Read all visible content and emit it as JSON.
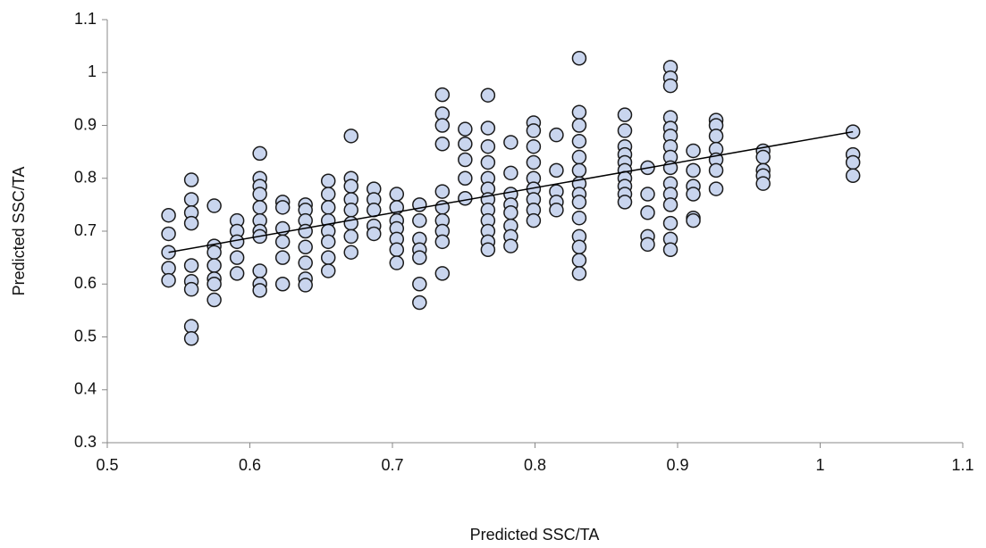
{
  "chart_data": {
    "type": "scatter",
    "x_label": "Predicted SSC/TA",
    "y_label": "Predicted SSC/TA",
    "xlim": [
      0.5,
      1.1
    ],
    "xticks": [
      0.5,
      0.6,
      0.7,
      0.8,
      0.9,
      1,
      1.1
    ],
    "ylim": [
      0.3,
      1.1
    ],
    "yticks": [
      0.3,
      0.4,
      0.5,
      0.6,
      0.7,
      0.8,
      0.9,
      1,
      1.1
    ],
    "grid": false,
    "color": "#c9d5ee",
    "x": [
      0.543,
      0.543,
      0.543,
      0.543,
      0.543,
      0.559,
      0.559,
      0.559,
      0.559,
      0.559,
      0.559,
      0.559,
      0.559,
      0.559,
      0.575,
      0.575,
      0.575,
      0.575,
      0.575,
      0.575,
      0.575,
      0.591,
      0.591,
      0.591,
      0.591,
      0.591,
      0.607,
      0.607,
      0.607,
      0.607,
      0.607,
      0.607,
      0.607,
      0.607,
      0.607,
      0.607,
      0.607,
      0.623,
      0.623,
      0.623,
      0.623,
      0.623,
      0.623,
      0.639,
      0.639,
      0.639,
      0.639,
      0.639,
      0.639,
      0.639,
      0.639,
      0.655,
      0.655,
      0.655,
      0.655,
      0.655,
      0.655,
      0.655,
      0.655,
      0.671,
      0.671,
      0.671,
      0.671,
      0.671,
      0.671,
      0.671,
      0.671,
      0.687,
      0.687,
      0.687,
      0.687,
      0.687,
      0.703,
      0.703,
      0.703,
      0.703,
      0.703,
      0.703,
      0.703,
      0.719,
      0.719,
      0.719,
      0.719,
      0.719,
      0.719,
      0.719,
      0.735,
      0.735,
      0.735,
      0.735,
      0.735,
      0.735,
      0.735,
      0.735,
      0.735,
      0.735,
      0.751,
      0.751,
      0.751,
      0.751,
      0.751,
      0.767,
      0.767,
      0.767,
      0.767,
      0.767,
      0.767,
      0.767,
      0.767,
      0.767,
      0.767,
      0.767,
      0.767,
      0.783,
      0.783,
      0.783,
      0.783,
      0.783,
      0.783,
      0.783,
      0.783,
      0.799,
      0.799,
      0.799,
      0.799,
      0.799,
      0.799,
      0.799,
      0.799,
      0.799,
      0.815,
      0.815,
      0.815,
      0.815,
      0.815,
      0.831,
      0.831,
      0.831,
      0.831,
      0.831,
      0.831,
      0.831,
      0.831,
      0.831,
      0.831,
      0.831,
      0.831,
      0.831,
      0.831,
      0.863,
      0.863,
      0.863,
      0.863,
      0.863,
      0.863,
      0.863,
      0.863,
      0.863,
      0.863,
      0.879,
      0.879,
      0.879,
      0.879,
      0.879,
      0.895,
      0.895,
      0.895,
      0.895,
      0.895,
      0.895,
      0.895,
      0.895,
      0.895,
      0.895,
      0.895,
      0.895,
      0.895,
      0.895,
      0.895,
      0.911,
      0.911,
      0.911,
      0.911,
      0.911,
      0.911,
      0.927,
      0.927,
      0.927,
      0.927,
      0.927,
      0.927,
      0.927,
      0.96,
      0.96,
      0.96,
      0.96,
      0.96,
      1.023,
      1.023,
      1.023,
      1.023
    ],
    "values": [
      0.73,
      0.695,
      0.66,
      0.63,
      0.607,
      0.797,
      0.76,
      0.735,
      0.715,
      0.635,
      0.605,
      0.59,
      0.52,
      0.497,
      0.748,
      0.672,
      0.66,
      0.635,
      0.61,
      0.6,
      0.57,
      0.72,
      0.7,
      0.68,
      0.65,
      0.62,
      0.847,
      0.8,
      0.785,
      0.77,
      0.745,
      0.72,
      0.7,
      0.69,
      0.625,
      0.6,
      0.588,
      0.755,
      0.745,
      0.705,
      0.68,
      0.65,
      0.6,
      0.75,
      0.74,
      0.72,
      0.7,
      0.67,
      0.64,
      0.61,
      0.598,
      0.795,
      0.77,
      0.745,
      0.72,
      0.7,
      0.68,
      0.65,
      0.625,
      0.88,
      0.8,
      0.785,
      0.76,
      0.74,
      0.715,
      0.69,
      0.66,
      0.78,
      0.76,
      0.74,
      0.71,
      0.695,
      0.77,
      0.745,
      0.72,
      0.705,
      0.685,
      0.665,
      0.64,
      0.75,
      0.72,
      0.685,
      0.665,
      0.65,
      0.6,
      0.565,
      0.958,
      0.922,
      0.9,
      0.865,
      0.775,
      0.745,
      0.72,
      0.7,
      0.68,
      0.62,
      0.893,
      0.865,
      0.835,
      0.8,
      0.762,
      0.957,
      0.895,
      0.86,
      0.83,
      0.8,
      0.78,
      0.76,
      0.74,
      0.72,
      0.7,
      0.68,
      0.665,
      0.868,
      0.81,
      0.77,
      0.75,
      0.735,
      0.71,
      0.69,
      0.672,
      0.905,
      0.89,
      0.86,
      0.83,
      0.8,
      0.78,
      0.76,
      0.74,
      0.72,
      0.882,
      0.815,
      0.775,
      0.755,
      0.74,
      1.027,
      0.925,
      0.9,
      0.87,
      0.84,
      0.815,
      0.79,
      0.77,
      0.755,
      0.725,
      0.69,
      0.67,
      0.645,
      0.62,
      0.92,
      0.89,
      0.86,
      0.845,
      0.83,
      0.815,
      0.8,
      0.785,
      0.77,
      0.755,
      0.82,
      0.77,
      0.735,
      0.69,
      0.675,
      1.01,
      0.99,
      0.975,
      0.915,
      0.895,
      0.88,
      0.86,
      0.84,
      0.82,
      0.79,
      0.77,
      0.75,
      0.715,
      0.685,
      0.665,
      0.852,
      0.815,
      0.785,
      0.77,
      0.725,
      0.72,
      0.91,
      0.9,
      0.88,
      0.855,
      0.835,
      0.815,
      0.78,
      0.852,
      0.84,
      0.815,
      0.805,
      0.79,
      0.888,
      0.845,
      0.83,
      0.805
    ],
    "trendline": {
      "x": [
        0.543,
        1.023
      ],
      "values": [
        0.66,
        0.888
      ],
      "color": "#000000"
    }
  }
}
